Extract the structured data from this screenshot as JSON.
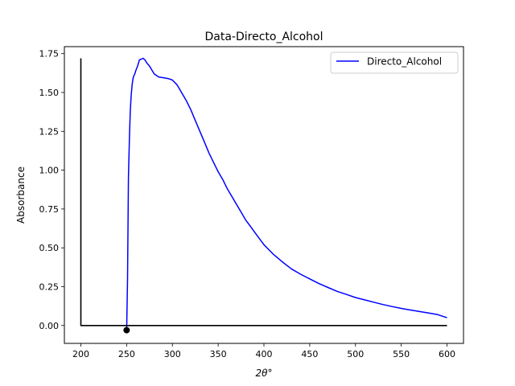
{
  "chart_data": {
    "type": "line",
    "title": "Data-Directo_Alcohol",
    "xlabel": "2θ°",
    "ylabel": "Absorbance",
    "xlim": [
      182.0,
      618.0
    ],
    "ylim": [
      -0.115,
      1.795
    ],
    "xticks": [
      200,
      250,
      300,
      350,
      400,
      450,
      500,
      550,
      600
    ],
    "xtick_labels": [
      "200",
      "250",
      "300",
      "350",
      "400",
      "450",
      "500",
      "550",
      "600"
    ],
    "yticks": [
      0.0,
      0.25,
      0.5,
      0.75,
      1.0,
      1.25,
      1.5,
      1.75
    ],
    "ytick_labels": [
      "0.00",
      "0.25",
      "0.50",
      "0.75",
      "1.00",
      "1.25",
      "1.50",
      "1.75"
    ],
    "grid": false,
    "legend_position": "top-right",
    "series": [
      {
        "name": "Directo_Alcohol",
        "color": "#0000ff",
        "x": [
          250,
          251,
          252,
          253,
          254,
          255,
          256,
          257,
          258,
          259,
          260,
          262,
          264,
          266,
          268,
          270,
          272,
          275,
          280,
          285,
          290,
          295,
          300,
          305,
          310,
          315,
          320,
          325,
          330,
          335,
          340,
          345,
          350,
          355,
          360,
          365,
          370,
          375,
          380,
          385,
          390,
          400,
          410,
          420,
          430,
          440,
          450,
          460,
          470,
          480,
          490,
          500,
          510,
          520,
          530,
          540,
          550,
          560,
          570,
          580,
          590,
          600
        ],
        "y": [
          -0.03,
          0.3,
          0.95,
          1.2,
          1.38,
          1.48,
          1.55,
          1.59,
          1.61,
          1.62,
          1.64,
          1.67,
          1.71,
          1.715,
          1.72,
          1.71,
          1.69,
          1.67,
          1.62,
          1.6,
          1.595,
          1.59,
          1.58,
          1.55,
          1.5,
          1.45,
          1.39,
          1.32,
          1.25,
          1.18,
          1.11,
          1.05,
          0.99,
          0.94,
          0.88,
          0.83,
          0.78,
          0.73,
          0.68,
          0.64,
          0.6,
          0.52,
          0.46,
          0.41,
          0.365,
          0.33,
          0.3,
          0.27,
          0.245,
          0.22,
          0.2,
          0.18,
          0.165,
          0.15,
          0.135,
          0.122,
          0.11,
          0.1,
          0.09,
          0.08,
          0.07,
          0.05
        ]
      },
      {
        "color": "#000000",
        "x": [
          200,
          200,
          250,
          600
        ],
        "y": [
          1.72,
          0.0,
          0.0,
          0.0
        ]
      }
    ],
    "points": [
      {
        "x": 250,
        "y": -0.03,
        "color": "#000000"
      }
    ]
  }
}
